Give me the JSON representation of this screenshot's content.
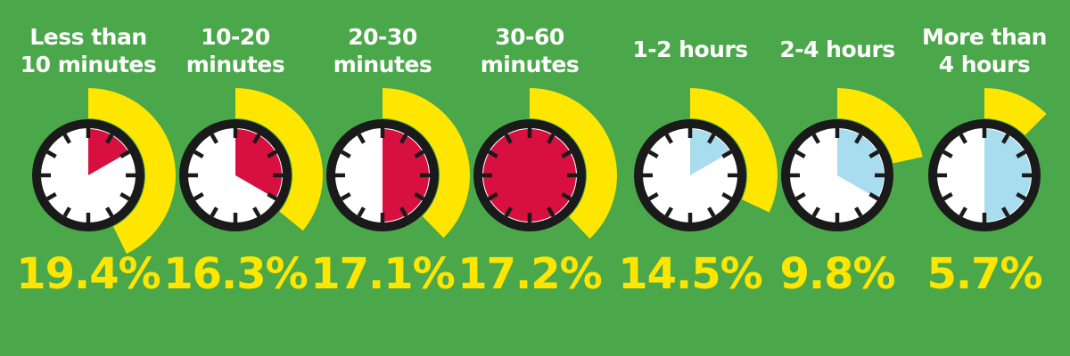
{
  "chart_data": {
    "type": "bar",
    "categories": [
      [
        "Less than",
        "10 minutes"
      ],
      [
        "10-20",
        "minutes"
      ],
      [
        "20-30",
        "minutes"
      ],
      [
        "30-60",
        "minutes"
      ],
      [
        "1-2 hours"
      ],
      [
        "2-4 hours"
      ],
      [
        "More than",
        "4 hours"
      ]
    ],
    "values": [
      19.4,
      16.3,
      17.1,
      17.2,
      14.5,
      9.8,
      5.7
    ],
    "value_labels": [
      "19.4%",
      "16.3%",
      "17.1%",
      "17.2%",
      "14.5%",
      "9.8%",
      "5.7%"
    ],
    "unit": "%",
    "clock_fill_minutes": [
      10,
      20,
      30,
      60,
      120,
      240,
      360
    ],
    "clock_fill_color": [
      "#d8103f",
      "#d8103f",
      "#d8103f",
      "#d8103f",
      "#a8dcef",
      "#a8dcef",
      "#a8dcef"
    ],
    "colors": {
      "background": "#4aa84a",
      "label": "#ffffff",
      "value": "#ffe600",
      "share_arc": "#ffe600",
      "clock_ring": "#1a1a1a",
      "clock_face": "#ffffff",
      "minutes_fill": "#d8103f",
      "hours_fill": "#a8dcef"
    }
  }
}
